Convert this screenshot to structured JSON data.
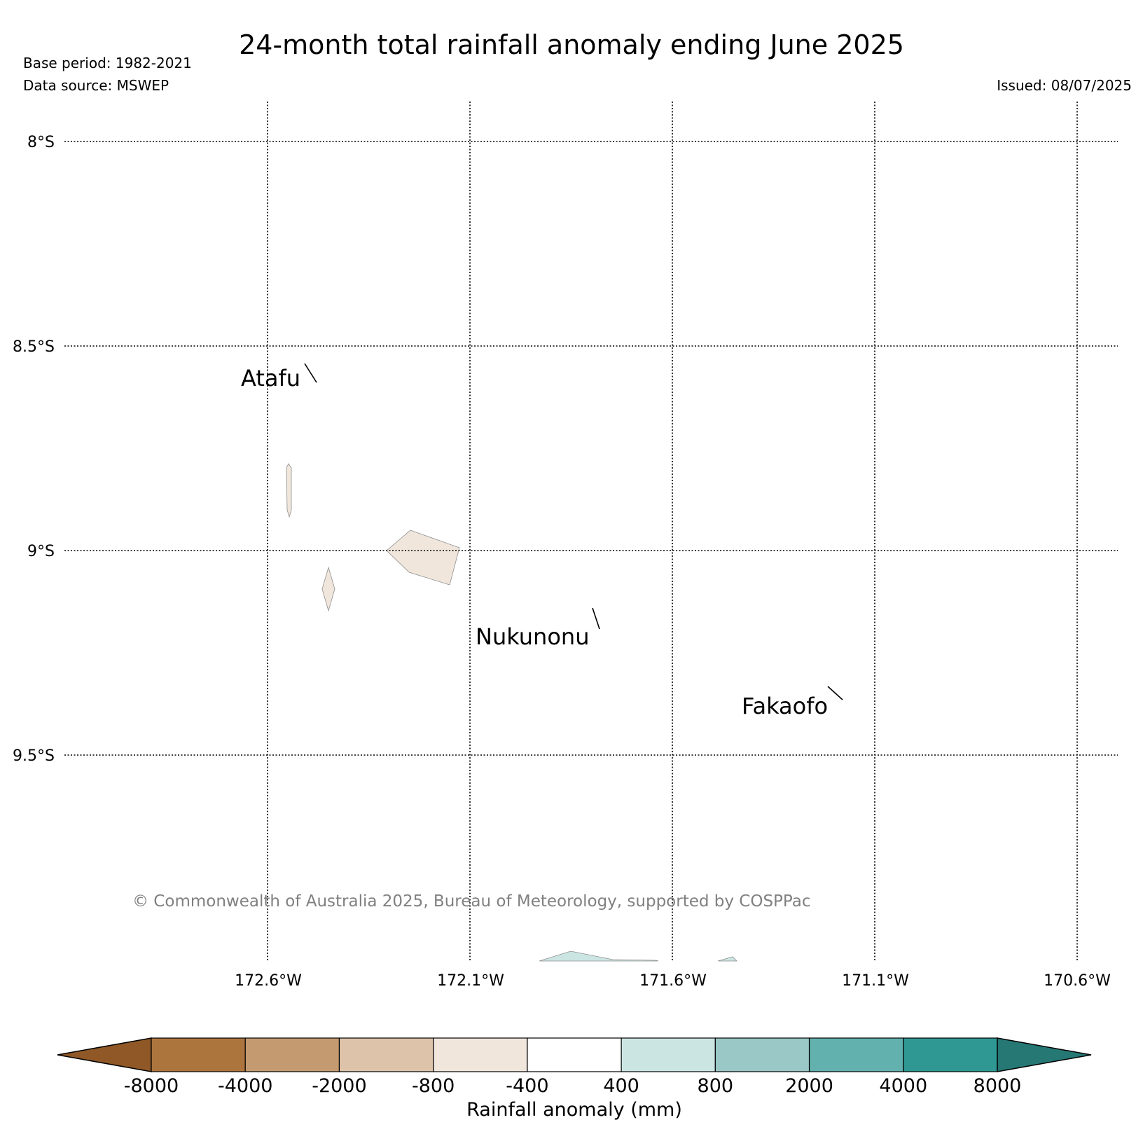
{
  "header": {
    "title": "24-month total rainfall anomaly ending June 2025",
    "base_period": "Base period: 1982-2021",
    "data_source": "Data source: MSWEP",
    "issued": "Issued: 08/07/2025"
  },
  "map": {
    "lat_labels": [
      "8°S",
      "8.5°S",
      "9°S",
      "9.5°S"
    ],
    "lon_labels": [
      "172.6°W",
      "172.1°W",
      "171.6°W",
      "171.1°W",
      "170.6°W"
    ],
    "places": [
      {
        "name": "Atafu"
      },
      {
        "name": "Nukunonu"
      },
      {
        "name": "Fakaofo"
      }
    ],
    "copyright": "© Commonwealth of Australia 2025, Bureau of Meteorology, supported by COSPPac",
    "colors": {
      "dry_light": "#f0e6dc",
      "wet_light": "#cbe5e3",
      "grid": "#000000"
    }
  },
  "colorbar": {
    "title": "Rainfall anomaly (mm)",
    "ticks": [
      "-8000",
      "-4000",
      "-2000",
      "-800",
      "-400",
      "400",
      "800",
      "2000",
      "4000",
      "8000"
    ],
    "colors": [
      "#8f5826",
      "#ad753e",
      "#c49a70",
      "#dcc3a9",
      "#f0e6dc",
      "#ffffff",
      "#cbe5e3",
      "#99c8c6",
      "#63b1ae",
      "#2f9892",
      "#257874"
    ]
  }
}
